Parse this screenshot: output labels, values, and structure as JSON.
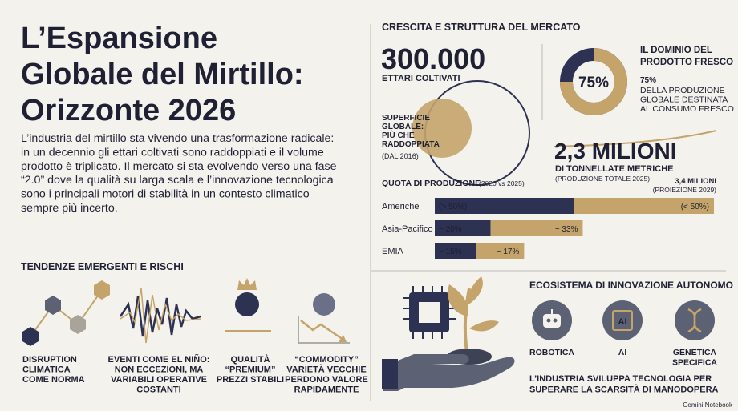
{
  "header": {
    "title_lines": [
      "L’Espansione",
      "Globale del Mirtillo:",
      "Orizzonte 2026"
    ],
    "intro_lines": [
      "L’industria del mirtillo sta vivendo una trasformazione radicale:",
      "in un decennio gli ettari coltivati sono raddoppiati e il volume",
      "prodotto è triplicato. Il mercato si sta evolvendo verso una fase",
      "“2.0” dove la qualità su larga scala e l’innovazione tecnologica",
      "sono i principali motori di stabilità in un contesto climatico",
      "sempre più incerto."
    ]
  },
  "trends": {
    "heading": "TENDENZE EMERGENTI E RISCHI",
    "items": [
      {
        "lines": [
          "DISRUPTION",
          "CLIMATICA",
          "COME NORMA"
        ]
      },
      {
        "lines": [
          "EVENTI COME EL NIÑO:",
          "NON ECCEZIONI, MA",
          "VARIABILI OPERATIVE",
          "COSTANTI"
        ]
      },
      {
        "lines": [
          "QUALITÀ",
          "“PREMIUM”",
          "PREZZI STABILI"
        ]
      },
      {
        "lines": [
          "“COMMODITY”",
          "VARIETÀ VECCHIE",
          "PERDONO VALORE",
          "RAPIDAMENTE"
        ]
      }
    ]
  },
  "market": {
    "heading": "CRESCITA E STRUTTURA DEL MERCATO",
    "area": {
      "value": "300.000",
      "label": "ETTARI COLTIVATI",
      "note_lines": [
        "SUPERFICIE",
        "GLOBALE:",
        "PIÙ CHE",
        "RADDOPPIATA"
      ],
      "since": "(DAL 2016)"
    },
    "fresh": {
      "title_lines": [
        "IL DOMINIO DEL",
        "PRODOTTO FRESCO"
      ],
      "stat": "75%",
      "desc_lines": [
        "DELLA PRODUZIONE",
        "GLOBALE DESTINATA",
        "AL CONSUMO FRESCO"
      ]
    },
    "volume": {
      "value": "2,3 MILIONI",
      "label": "DI TONNELLATE METRICHE",
      "note": "(PRODUZIONE TOTALE 2025)",
      "projection": "3,4 MILIONI",
      "projection_note": "(PROIEZIONE 2029)"
    }
  },
  "innovation": {
    "heading": "ECOSISTEMA DI INNOVAZIONE AUTONOMO",
    "icon_text": "AI",
    "items": [
      {
        "lines": [
          "ROBOTICA"
        ]
      },
      {
        "lines": [
          "AI"
        ]
      },
      {
        "lines": [
          "GENETICA",
          "SPECIFICA"
        ]
      }
    ],
    "caption_lines": [
      "L’INDUSTRIA SVILUPPA TECNOLOGIA PER",
      "SUPERARE LA SCARSITÀ DI MANODOPERA"
    ]
  },
  "footer": "Gemini Notebook",
  "chart_data": [
    {
      "type": "bar",
      "title": "QUOTA DI PRODUZIONE",
      "subtitle": "(2020 vs 2025)",
      "orientation": "horizontal",
      "stacked": true,
      "categories": [
        "Americhe",
        "Asia-Pacifico",
        "EMIA"
      ],
      "series": [
        {
          "color": "#2d3152",
          "values": [
            50,
            20,
            15
          ],
          "value_labels": [
            "(> 50%)",
            "~ 20%",
            "~ 15%"
          ]
        },
        {
          "color": "#c4a46a",
          "values": [
            50,
            33,
            17
          ],
          "value_labels": [
            "(< 50%)",
            "~ 33%",
            "~ 17%"
          ]
        }
      ]
    },
    {
      "type": "pie",
      "values": [
        75
      ],
      "value_labels": [
        "75%"
      ],
      "color": "#c4a46a"
    }
  ]
}
